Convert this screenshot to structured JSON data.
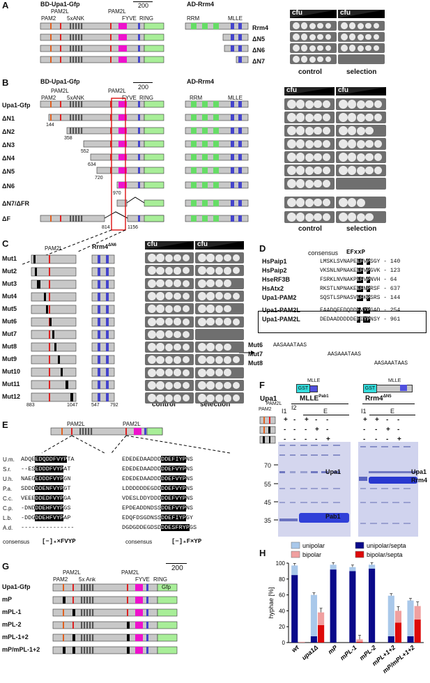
{
  "panels": [
    "A",
    "B",
    "C",
    "D",
    "E",
    "F",
    "G",
    "H"
  ],
  "panelA": {
    "bait_title": "BD-Upa1-Gfp",
    "prey_title": "AD-Rrm4",
    "scale_label": "200",
    "domain_labels": {
      "pam2": "PAM2",
      "pam2l_1": "PAM2L",
      "ank": "5xANK",
      "pam2l_2": "PAM2L",
      "fyve": "FYVE",
      "ring": "RING",
      "gfp": "Gfp",
      "rrm": "RRM",
      "mlle": "MLLE"
    },
    "rows": [
      "Rrm4",
      "ΔN5",
      "ΔN6",
      "ΔN7"
    ],
    "cfu": "cfu",
    "plate_labels": [
      "control",
      "selection"
    ]
  },
  "panelB": {
    "bait_title": "BD-Upa1-Gfp",
    "prey_title": "AD-Rrm4",
    "scale_label": "200",
    "domain_labels": {
      "pam2": "PAM2",
      "pam2l_1": "PAM2L",
      "ank": "5xANK",
      "pam2l_2": "PAM2L",
      "fyve": "FYVE",
      "ring": "RING",
      "gfp": "Gfp",
      "rrm": "RRM",
      "mlle": "MLLE"
    },
    "rows": [
      "Upa1-Gfp",
      "ΔN1",
      "ΔN2",
      "ΔN3",
      "ΔN4",
      "ΔN5",
      "ΔN6",
      "ΔN7/ΔFR",
      "ΔF"
    ],
    "positions": [
      "144",
      "358",
      "552",
      "634",
      "720",
      "970",
      "814",
      "1156"
    ],
    "cfu": "cfu",
    "plate_labels": [
      "control",
      "selection"
    ]
  },
  "panelC": {
    "pam2l": "PAM2L",
    "rrm4": "Rrm4",
    "rrm4_sup": "ΔN6",
    "rows": [
      "Mut1",
      "Mut2",
      "Mut3",
      "Mut4",
      "Mut5",
      "Mut6",
      "Mut7",
      "Mut8",
      "Mut9",
      "Mut10",
      "Mut11",
      "Mut12"
    ],
    "positions": [
      "883",
      "1047",
      "547",
      "792"
    ],
    "cfu": "cfu",
    "plate_labels": [
      "control",
      "selection"
    ]
  },
  "panelD": {
    "consensus_label": "consensus",
    "consensus_motif": "EFxxP",
    "rows": [
      {
        "name": "HsPaip1",
        "pre": "LMSKLSVNAPE",
        "hl": "EF",
        "mid": "V",
        "hl2": "P",
        "post": "SGY",
        "num": "- 140"
      },
      {
        "name": "HsPaip2",
        "pre": "VKSNLNPNAKE",
        "hl": "EF",
        "mid": "V",
        "hl2": "P",
        "post": "GVK",
        "num": "- 123"
      },
      {
        "name": "HseRF3B",
        "pre": "FSRKLNVNAKP",
        "hl": "EF",
        "mid": "V",
        "hl2": "P",
        "post": "NVH",
        "num": "- 64"
      },
      {
        "name": "HsAtx2",
        "pre": "RKSTLNPNAKE",
        "hl": "EF",
        "mid": "N",
        "hl2": "P",
        "post": "RSF",
        "num": "- 637"
      },
      {
        "name": "Upa1-PAM2",
        "pre": "SQSTLSPNASV",
        "hl": "EF",
        "mid": "K",
        "hl2": "P",
        "post": "SRS",
        "num": "- 144"
      },
      {
        "name": "Upa1-PAM2L",
        "pre": "EAADQEEDQDD",
        "hl": "F",
        "mid": "V",
        "hl2": "YP",
        "post": "GAD",
        "num": "- 254"
      },
      {
        "name": "Upa1-PAM2L",
        "pre": "DEDAADDDDDE",
        "hl": "F",
        "mid": "I",
        "hl2": "YP",
        "post": "NSY",
        "num": "- 961"
      }
    ],
    "mutants": [
      {
        "name": "Mut6",
        "seq": "AASAAATAAS"
      },
      {
        "name": "Mut7",
        "seq": "AASAAATAAS"
      },
      {
        "name": "Mut8",
        "seq": "AASAAATAAS"
      }
    ]
  },
  "panelE": {
    "pam2l_1": "PAM2L",
    "pam2l_2": "PAM2L",
    "species": [
      "U.m.",
      "S.r.",
      "U.h.",
      "P.a.",
      "C.c.",
      "C.p.",
      "L.b.",
      "A.d."
    ],
    "left": [
      {
        "pre": "ADQE",
        "hl": "EDQDDFVYP",
        "post": "TA"
      },
      {
        "pre": "--ES",
        "hl": "EDDDFVYP",
        "post": "AT"
      },
      {
        "pre": "NAEG",
        "hl": "EDDDFVYP",
        "post": "GN"
      },
      {
        "pre": "SDDD",
        "hl": "DDENFVYP",
        "post": "GT"
      },
      {
        "pre": "VEEE",
        "hl": "DDEDFVYP",
        "post": "GA"
      },
      {
        "pre": "-DND",
        "hl": "DDEHFVYP",
        "post": "GS"
      },
      {
        "pre": "-DDG",
        "hl": "DDEHFVYP",
        "post": "AP"
      },
      {
        "pre": "---------------",
        "hl": "",
        "post": ""
      }
    ],
    "right": [
      {
        "pre": "EDEDEDAADDD",
        "hl": "DDEFIYP",
        "post": "NS"
      },
      {
        "pre": "EDEDEDAADDD",
        "hl": "DDEFVYP",
        "post": "NS"
      },
      {
        "pre": "EDEDEDAADDD",
        "hl": "DDEFVYP",
        "post": "NS"
      },
      {
        "pre": "LDDDDDDEGDD",
        "hl": "DDEFVYP",
        "post": "NS"
      },
      {
        "pre": "VDESLDDYDDD",
        "hl": "DDEFVYP",
        "post": "NS"
      },
      {
        "pre": "EPDEADDNDSS",
        "hl": "DDEFVYP",
        "post": "NS"
      },
      {
        "pre": "EDQFDSGDNSS",
        "hl": "DDEFIYP",
        "post": "GY"
      },
      {
        "pre": "DGDGDDEGDSD",
        "hl": "DDESFRYP",
        "post": "GS"
      }
    ],
    "consensus_label": "consensus",
    "consensus_left": "[−]ₙ×FVYP",
    "consensus_right": "[−]ₙF×YP"
  },
  "panelF": {
    "upa1": "Upa1",
    "mlle": "MLLE",
    "gst": "GST",
    "header1": "MLLE",
    "header1_sup": "Pab1",
    "header2": "Rrm4",
    "header2_sup": "ΔN5",
    "pam2": "PAM2",
    "pam2l": "PAM2L",
    "lanes": [
      "I1",
      "I2",
      "E"
    ],
    "lanes2": [
      "I1",
      "E"
    ],
    "marks_row1": [
      "+",
      "-",
      "+",
      "-",
      "-",
      "+",
      "-",
      "-"
    ],
    "marks_row2": [
      "-",
      "-",
      "+",
      "-",
      "-",
      "+",
      "-"
    ],
    "marks_row3": [
      "-",
      "-",
      "+",
      "-",
      "-",
      "+"
    ],
    "mw": [
      "70",
      "55",
      "45",
      "35"
    ],
    "band_labels_left": [
      "Upa1",
      "Pab1"
    ],
    "band_labels_right": [
      "Upa1",
      "Rrm4"
    ]
  },
  "panelG": {
    "rows": [
      "Upa1-Gfp",
      "mP",
      "mPL-1",
      "mPL-2",
      "mPL-1+2",
      "mP/mPL-1+2"
    ],
    "scale_label": "200",
    "domain_labels": {
      "pam2": "PAM2",
      "pam2l_1": "PAM2L",
      "ank": "5x Ank",
      "pam2l_2": "PAM2L",
      "fyve": "FYVE",
      "ring": "RING",
      "gfp": "Gfp"
    }
  },
  "chart_data": {
    "type": "bar",
    "ylabel": "hyphae [%]",
    "ylim": [
      0,
      100
    ],
    "yticks": [
      0,
      20,
      40,
      60,
      80,
      100
    ],
    "categories": [
      "wt",
      "upa1Δ",
      "mP",
      "mPL-1",
      "mPL-2",
      "mPL+1+2",
      "mP/mPL+1+2"
    ],
    "legend": [
      "unipolar",
      "bipolar",
      "unipolar/septa",
      "bipolar/septa"
    ],
    "colors": {
      "unipolar": "#a9c8ea",
      "bipolar": "#f0a0a0",
      "unipolar/septa": "#0a0a8a",
      "bipolar/septa": "#dd0a0a"
    },
    "groups": [
      {
        "uni_septa": 85,
        "uni": 12,
        "bi_septa": 0,
        "bi": 1
      },
      {
        "uni_septa": 8,
        "uni": 52,
        "bi_septa": 22,
        "bi": 16
      },
      {
        "uni_septa": 92,
        "uni": 6,
        "bi_septa": 0,
        "bi": 0
      },
      {
        "uni_septa": 90,
        "uni": 5,
        "bi_septa": 1,
        "bi": 3
      },
      {
        "uni_septa": 93,
        "uni": 5,
        "bi_septa": 0,
        "bi": 0
      },
      {
        "uni_septa": 8,
        "uni": 51,
        "bi_septa": 25,
        "bi": 15
      },
      {
        "uni_septa": 8,
        "uni": 45,
        "bi_septa": 29,
        "bi": 17
      }
    ]
  }
}
